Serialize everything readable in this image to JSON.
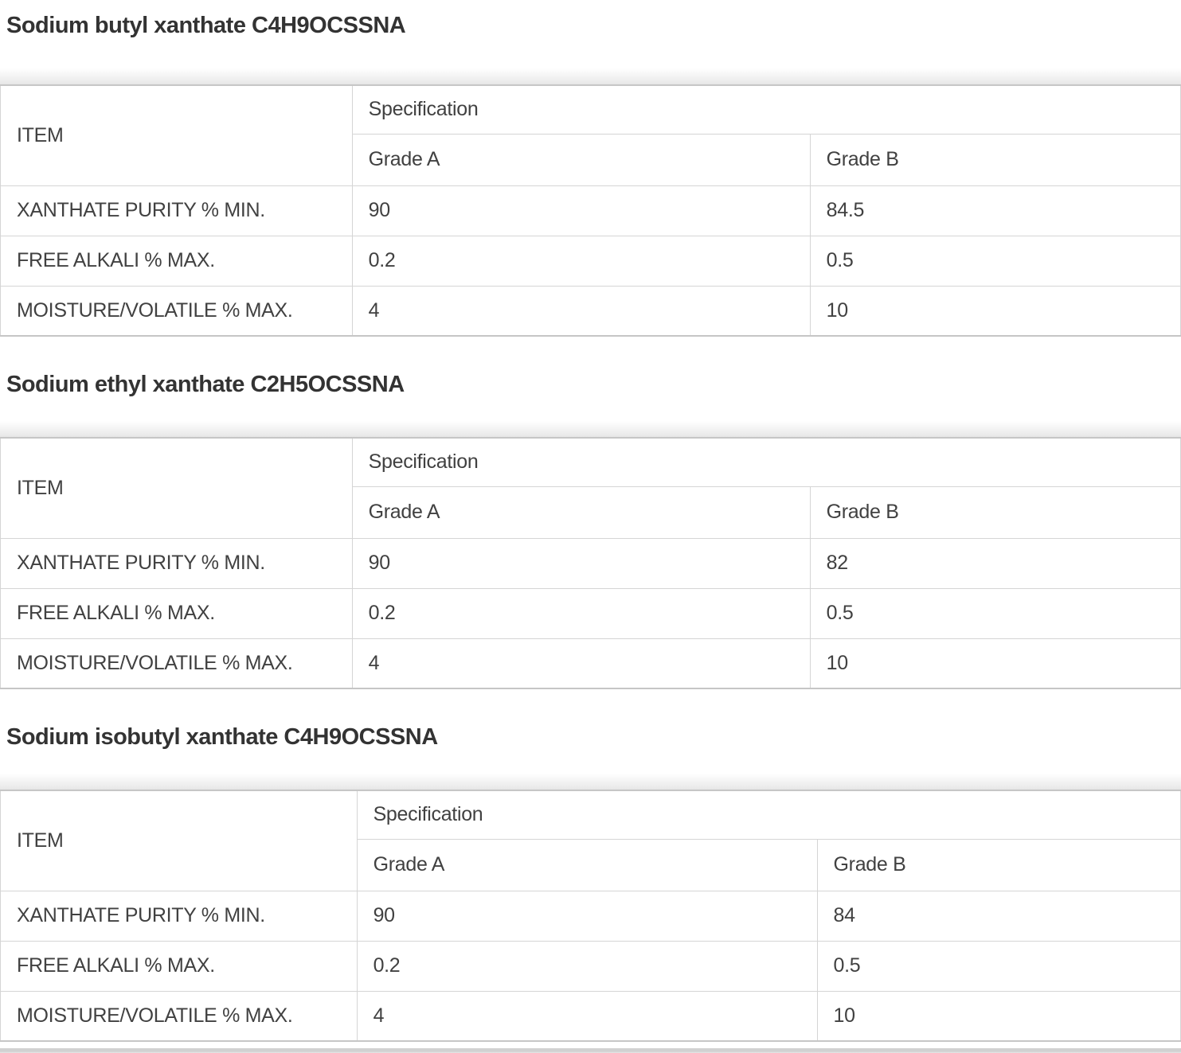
{
  "headers": {
    "item": "ITEM",
    "specification": "Specification",
    "grade_a": "Grade A",
    "grade_b": "Grade B"
  },
  "sections": [
    {
      "heading": "Sodium butyl xanthate C4H9OCSSNA",
      "rows": [
        {
          "label": "XANTHATE PURITY % MIN.",
          "grade_a": "90",
          "grade_b": "84.5"
        },
        {
          "label": "FREE ALKALI % MAX.",
          "grade_a": "0.2",
          "grade_b": "0.5"
        },
        {
          "label": "MOISTURE/VOLATILE % MAX.",
          "grade_a": "4",
          "grade_b": "10"
        }
      ]
    },
    {
      "heading": "Sodium ethyl xanthate C2H5OCSSNA",
      "rows": [
        {
          "label": "XANTHATE PURITY % MIN.",
          "grade_a": "90",
          "grade_b": "82"
        },
        {
          "label": "FREE ALKALI % MAX.",
          "grade_a": "0.2",
          "grade_b": "0.5"
        },
        {
          "label": "MOISTURE/VOLATILE % MAX.",
          "grade_a": "4",
          "grade_b": "10"
        }
      ]
    },
    {
      "heading": "Sodium isobutyl xanthate C4H9OCSSNA",
      "rows": [
        {
          "label": "XANTHATE PURITY % MIN.",
          "grade_a": "90",
          "grade_b": "84"
        },
        {
          "label": "FREE ALKALI % MAX.",
          "grade_a": "0.2",
          "grade_b": "0.5"
        },
        {
          "label": "MOISTURE/VOLATILE % MAX.",
          "grade_a": "4",
          "grade_b": "10"
        }
      ]
    }
  ],
  "colors": {
    "border_light": "#d5d5d5",
    "border_strong": "#c6c6c6",
    "text": "#414141",
    "heading_text": "#333333",
    "bottom_bar": "#d1d1d1"
  }
}
